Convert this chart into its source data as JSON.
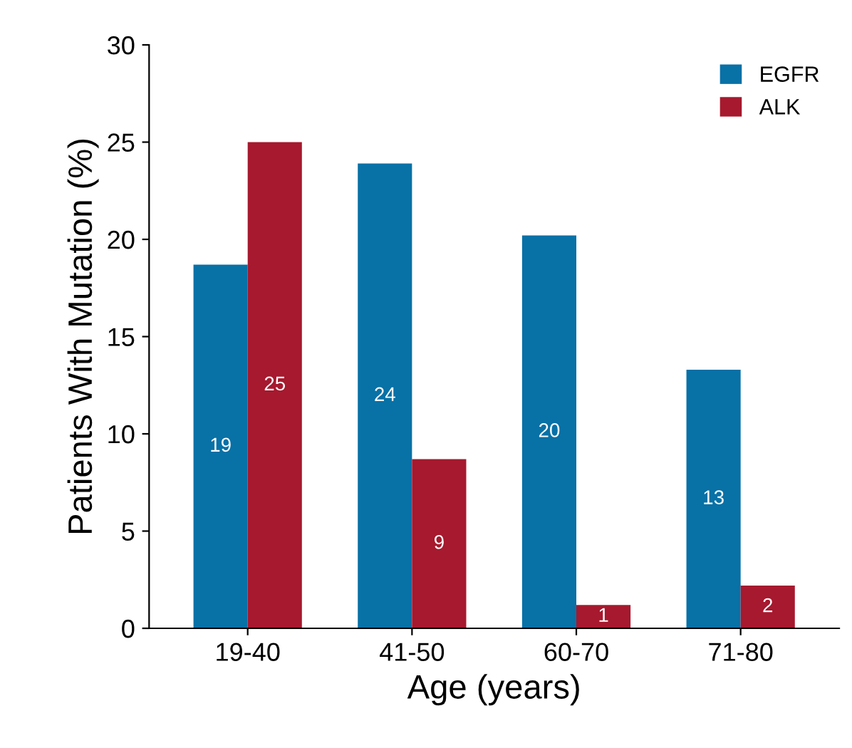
{
  "chart_data": {
    "type": "bar",
    "xlabel": "Age (years)",
    "ylabel": "Patients With Mutation (%)",
    "categories": [
      "19-40",
      "41-50",
      "60-70",
      "71-80"
    ],
    "series": [
      {
        "name": "EGFR",
        "color": "#0871a6",
        "values": [
          18.7,
          23.9,
          20.2,
          13.3
        ],
        "value_labels": [
          "19",
          "24",
          "20",
          "13"
        ]
      },
      {
        "name": "ALK",
        "color": "#a6192e",
        "values": [
          25,
          8.7,
          1.2,
          2.2
        ],
        "value_labels": [
          "25",
          "9",
          "1",
          "2"
        ]
      }
    ],
    "ylim": [
      0,
      30
    ],
    "yticks": [
      0,
      5,
      10,
      15,
      20,
      25,
      30
    ],
    "grid": false,
    "legend": "top right"
  }
}
